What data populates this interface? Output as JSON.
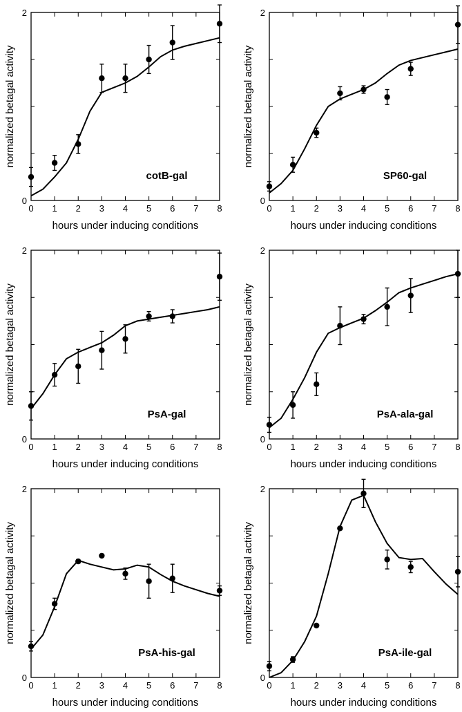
{
  "figure": {
    "xlabel": "hours under inducing conditions",
    "ylabel": "normalized betagal activity"
  },
  "chart_data": [
    {
      "type": "line",
      "title": "cotB-gal",
      "xlabel": "hours under inducing conditions",
      "ylabel": "normalized betagal activity",
      "xlim": [
        0,
        8
      ],
      "ylim": [
        0,
        2
      ],
      "x_ticks": [
        "0",
        "1",
        "2",
        "3",
        "4",
        "5",
        "6",
        "7",
        "8"
      ],
      "y_ticks": [
        "0",
        "2"
      ],
      "grid": false,
      "points": [
        {
          "x": 0,
          "y": 0.25,
          "err": 0.1
        },
        {
          "x": 1,
          "y": 0.4,
          "err": 0.08
        },
        {
          "x": 2,
          "y": 0.6,
          "err": 0.1
        },
        {
          "x": 3,
          "y": 1.3,
          "err": 0.15
        },
        {
          "x": 4,
          "y": 1.3,
          "err": 0.15
        },
        {
          "x": 5,
          "y": 1.5,
          "err": 0.15
        },
        {
          "x": 6,
          "y": 1.68,
          "err": 0.18
        },
        {
          "x": 8,
          "y": 1.88,
          "err": 0.2
        }
      ],
      "fit": {
        "x": [
          0,
          0.5,
          1,
          1.5,
          2,
          2.5,
          3,
          3.5,
          4,
          4.5,
          5,
          5.5,
          6,
          6.5,
          7,
          7.5,
          8
        ],
        "y": [
          0.05,
          0.12,
          0.25,
          0.4,
          0.65,
          0.95,
          1.15,
          1.2,
          1.25,
          1.32,
          1.42,
          1.53,
          1.6,
          1.64,
          1.67,
          1.7,
          1.73
        ]
      }
    },
    {
      "type": "line",
      "title": "SP60-gal",
      "xlabel": "hours under inducing conditions",
      "ylabel": "normalized betagal activity",
      "xlim": [
        0,
        8
      ],
      "ylim": [
        0,
        2
      ],
      "x_ticks": [
        "0",
        "1",
        "2",
        "3",
        "4",
        "5",
        "6",
        "7",
        "8"
      ],
      "y_ticks": [
        "0",
        "2"
      ],
      "grid": false,
      "points": [
        {
          "x": 0,
          "y": 0.15,
          "err": 0.05
        },
        {
          "x": 1,
          "y": 0.38,
          "err": 0.08
        },
        {
          "x": 2,
          "y": 0.72,
          "err": 0.05
        },
        {
          "x": 3,
          "y": 1.14,
          "err": 0.07
        },
        {
          "x": 4,
          "y": 1.18,
          "err": 0.04
        },
        {
          "x": 5,
          "y": 1.1,
          "err": 0.08
        },
        {
          "x": 6,
          "y": 1.4,
          "err": 0.07
        },
        {
          "x": 8,
          "y": 1.87,
          "err": 0.2
        }
      ],
      "fit": {
        "x": [
          0,
          0.5,
          1,
          1.5,
          2,
          2.5,
          3,
          3.5,
          4,
          4.5,
          5,
          5.5,
          6,
          6.5,
          7,
          7.5,
          8
        ],
        "y": [
          0.08,
          0.18,
          0.32,
          0.55,
          0.8,
          1.0,
          1.08,
          1.13,
          1.18,
          1.25,
          1.35,
          1.44,
          1.49,
          1.52,
          1.55,
          1.58,
          1.61
        ]
      }
    },
    {
      "type": "line",
      "title": "PsA-gal",
      "xlabel": "hours under inducing conditions",
      "ylabel": "normalized betagal activity",
      "xlim": [
        0,
        8
      ],
      "ylim": [
        0,
        2
      ],
      "x_ticks": [
        "0",
        "1",
        "2",
        "3",
        "4",
        "5",
        "6",
        "7",
        "8"
      ],
      "y_ticks": [
        "0",
        "2"
      ],
      "grid": false,
      "points": [
        {
          "x": 0,
          "y": 0.35,
          "err": 0.15
        },
        {
          "x": 1,
          "y": 0.68,
          "err": 0.12
        },
        {
          "x": 2,
          "y": 0.77,
          "err": 0.18
        },
        {
          "x": 3,
          "y": 0.94,
          "err": 0.2
        },
        {
          "x": 4,
          "y": 1.06,
          "err": 0.15
        },
        {
          "x": 5,
          "y": 1.3,
          "err": 0.05
        },
        {
          "x": 6,
          "y": 1.3,
          "err": 0.07
        },
        {
          "x": 8,
          "y": 1.72,
          "err": 0.25
        }
      ],
      "fit": {
        "x": [
          0,
          0.5,
          1,
          1.5,
          2,
          2.5,
          3,
          3.5,
          4,
          4.5,
          5,
          5.5,
          6,
          6.5,
          7,
          7.5,
          8
        ],
        "y": [
          0.32,
          0.48,
          0.68,
          0.85,
          0.92,
          0.97,
          1.02,
          1.1,
          1.2,
          1.25,
          1.27,
          1.29,
          1.31,
          1.33,
          1.35,
          1.37,
          1.4
        ]
      }
    },
    {
      "type": "line",
      "title": "PsA-ala-gal",
      "xlabel": "hours under inducing conditions",
      "ylabel": "normalized betagal activity",
      "xlim": [
        0,
        8
      ],
      "ylim": [
        0,
        2
      ],
      "x_ticks": [
        "0",
        "1",
        "2",
        "3",
        "4",
        "5",
        "6",
        "7",
        "8"
      ],
      "y_ticks": [
        "0",
        "2"
      ],
      "grid": false,
      "points": [
        {
          "x": 0,
          "y": 0.15,
          "err": 0.08
        },
        {
          "x": 1,
          "y": 0.36,
          "err": 0.14
        },
        {
          "x": 2,
          "y": 0.58,
          "err": 0.12
        },
        {
          "x": 3,
          "y": 1.2,
          "err": 0.2
        },
        {
          "x": 4,
          "y": 1.27,
          "err": 0.05
        },
        {
          "x": 5,
          "y": 1.4,
          "err": 0.2
        },
        {
          "x": 6,
          "y": 1.52,
          "err": 0.18
        },
        {
          "x": 8,
          "y": 1.75,
          "err": 0.25
        }
      ],
      "fit": {
        "x": [
          0,
          0.5,
          1,
          1.5,
          2,
          2.5,
          3,
          3.5,
          4,
          4.5,
          5,
          5.5,
          6,
          6.5,
          7,
          7.5,
          8
        ],
        "y": [
          0.12,
          0.22,
          0.42,
          0.65,
          0.92,
          1.12,
          1.18,
          1.23,
          1.28,
          1.36,
          1.45,
          1.55,
          1.6,
          1.64,
          1.68,
          1.72,
          1.75
        ]
      }
    },
    {
      "type": "line",
      "title": "PsA-his-gal",
      "xlabel": "hours under inducing conditions",
      "ylabel": "normalized betagal activity",
      "xlim": [
        0,
        8
      ],
      "ylim": [
        0,
        2
      ],
      "x_ticks": [
        "0",
        "1",
        "2",
        "3",
        "4",
        "5",
        "6",
        "7",
        "8"
      ],
      "y_ticks": [
        "0",
        "2"
      ],
      "grid": false,
      "points": [
        {
          "x": 0,
          "y": 0.33,
          "err": 0.05
        },
        {
          "x": 1,
          "y": 0.78,
          "err": 0.06
        },
        {
          "x": 2,
          "y": 1.23,
          "err": 0.02
        },
        {
          "x": 3,
          "y": 1.29,
          "err": 0
        },
        {
          "x": 4,
          "y": 1.1,
          "err": 0.06
        },
        {
          "x": 5,
          "y": 1.02,
          "err": 0.18
        },
        {
          "x": 6,
          "y": 1.05,
          "err": 0.15
        },
        {
          "x": 8,
          "y": 0.92,
          "err": 0.05
        }
      ],
      "fit": {
        "x": [
          0,
          0.5,
          1,
          1.5,
          2,
          2.5,
          3,
          3.5,
          4,
          4.5,
          5,
          5.5,
          6,
          6.5,
          7,
          7.5,
          8
        ],
        "y": [
          0.3,
          0.45,
          0.75,
          1.1,
          1.24,
          1.2,
          1.17,
          1.14,
          1.15,
          1.19,
          1.17,
          1.09,
          1.02,
          0.97,
          0.93,
          0.89,
          0.86
        ]
      }
    },
    {
      "type": "line",
      "title": "PsA-ile-gal",
      "xlabel": "hours under inducing conditions",
      "ylabel": "normalized betagal activity",
      "xlim": [
        0,
        8
      ],
      "ylim": [
        0,
        2
      ],
      "x_ticks": [
        "0",
        "1",
        "2",
        "3",
        "4",
        "5",
        "6",
        "7",
        "8"
      ],
      "y_ticks": [
        "0",
        "2"
      ],
      "grid": false,
      "points": [
        {
          "x": 0,
          "y": 0.12,
          "err": 0.05
        },
        {
          "x": 1,
          "y": 0.19,
          "err": 0.03
        },
        {
          "x": 2,
          "y": 0.55,
          "err": 0
        },
        {
          "x": 3,
          "y": 1.58,
          "err": 0
        },
        {
          "x": 4,
          "y": 1.95,
          "err": 0.15
        },
        {
          "x": 5,
          "y": 1.25,
          "err": 0.1
        },
        {
          "x": 6,
          "y": 1.17,
          "err": 0.06
        },
        {
          "x": 8,
          "y": 1.12,
          "err": 0.16
        }
      ],
      "fit": {
        "x": [
          0,
          0.5,
          1,
          1.5,
          2,
          2.5,
          3,
          3.5,
          4,
          4.5,
          5,
          5.5,
          6,
          6.5,
          7,
          7.5,
          8
        ],
        "y": [
          0.0,
          0.05,
          0.18,
          0.38,
          0.65,
          1.1,
          1.6,
          1.88,
          1.93,
          1.65,
          1.42,
          1.27,
          1.25,
          1.26,
          1.12,
          0.99,
          0.88
        ]
      }
    }
  ]
}
